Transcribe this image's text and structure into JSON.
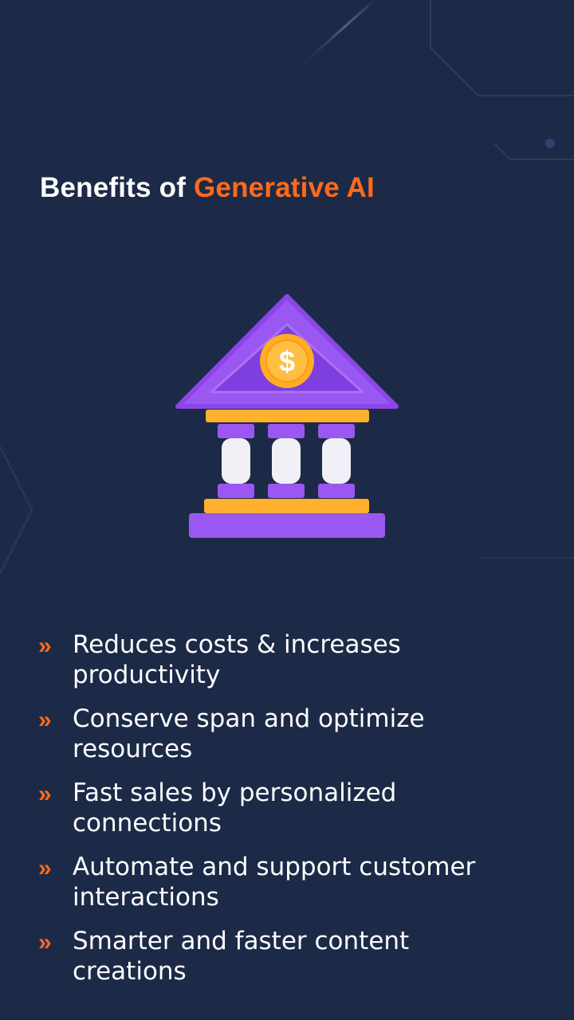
{
  "header": {
    "title_prefix": "Benefits of ",
    "title_highlight": "Generative AI"
  },
  "illustration": {
    "name": "bank-icon",
    "symbol": "$"
  },
  "benefits": [
    {
      "icon": "double-chevron-right-icon",
      "text": "Reduces costs & increases productivity"
    },
    {
      "icon": "double-chevron-right-icon",
      "text": "Conserve span and optimize resources"
    },
    {
      "icon": "double-chevron-right-icon",
      "text": "Fast sales by personalized connections"
    },
    {
      "icon": "double-chevron-right-icon",
      "text": "Automate and support customer interactions"
    },
    {
      "icon": "double-chevron-right-icon",
      "text": "Smarter and faster content creations"
    }
  ],
  "colors": {
    "background": "#1c2a47",
    "accent": "#ff6a1a",
    "text": "#ffffff",
    "bank_purple": "#9b57f2",
    "bank_orange": "#ffb12e"
  }
}
